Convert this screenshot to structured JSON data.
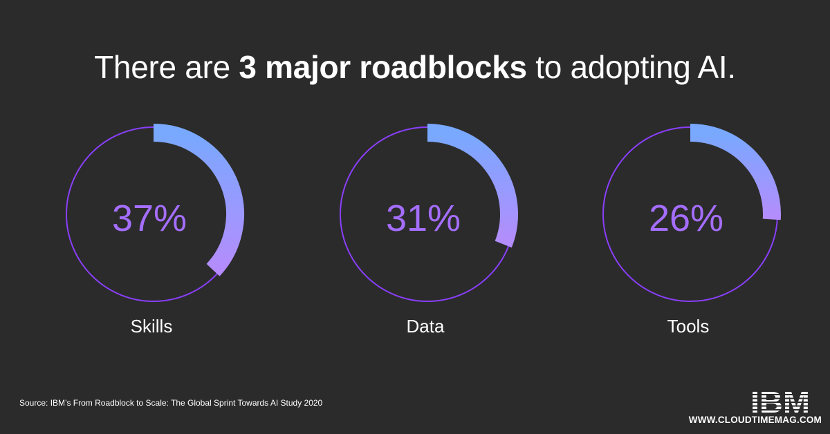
{
  "headline": {
    "prefix": "There are ",
    "emphasis": "3 major roadblocks",
    "suffix": " to adopting AI."
  },
  "colors": {
    "background": "#2b2b2b",
    "ring": "#8a3ffc",
    "arc_start": "#78a9ff",
    "arc_end": "#b58cfc",
    "value_text": "#a56eff",
    "label_text": "#ffffff"
  },
  "chart_data": {
    "type": "pie",
    "title": "There are 3 major roadblocks to adopting AI.",
    "unit": "%",
    "categories": [
      "Skills",
      "Data",
      "Tools"
    ],
    "values": [
      37,
      31,
      26
    ],
    "display_values": [
      "37%",
      "31%",
      "26%"
    ]
  },
  "footer": {
    "source": "Source: IBM’s From Roadblock to Scale: The Global Sprint Towards AI Study 2020",
    "brand_logo": "IBM",
    "site": "WWW.CLOUDTIMEMAG.COM"
  }
}
